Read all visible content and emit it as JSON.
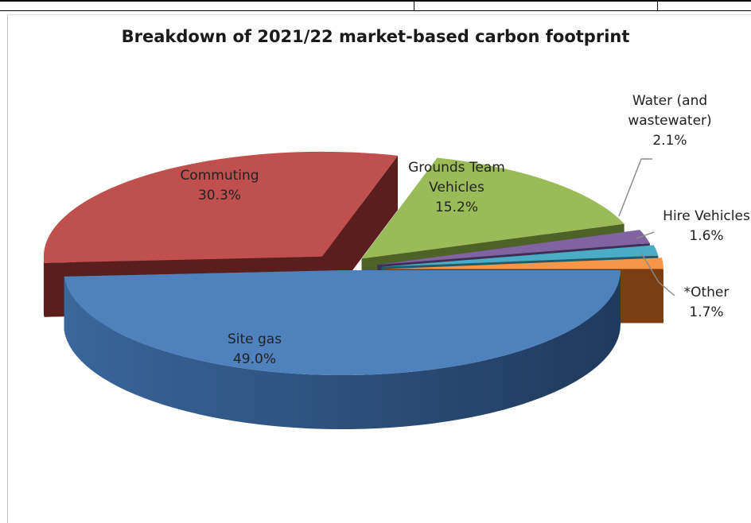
{
  "chart_data": {
    "type": "pie",
    "title": "Breakdown of 2021/22 market-based carbon footprint",
    "slices": [
      {
        "name": "Site gas",
        "value": 49.0,
        "label": "49.0%",
        "color": "#4f81bd",
        "side_color": "#2c4a6e"
      },
      {
        "name": "Commuting",
        "value": 30.3,
        "label": "30.3%",
        "color": "#c0504d",
        "side_color": "#5a1e1c"
      },
      {
        "name": "Grounds Team Vehicles",
        "value": 15.2,
        "label": "15.2%",
        "color": "#9bbb59",
        "side_color": "#4d6226"
      },
      {
        "name": "Water (and wastewater)",
        "value": 2.1,
        "label": "2.1%",
        "color": "#8064a2",
        "side_color": "#3f2f55"
      },
      {
        "name": "Hire Vehicles",
        "value": 1.6,
        "label": "1.6%",
        "color": "#4bacc6",
        "side_color": "#215b6b"
      },
      {
        "name": "*Other",
        "value": 1.7,
        "label": "1.7%",
        "color": "#f79646",
        "side_color": "#7a3e10"
      }
    ],
    "legend": "none",
    "style": "3d-exploded"
  }
}
